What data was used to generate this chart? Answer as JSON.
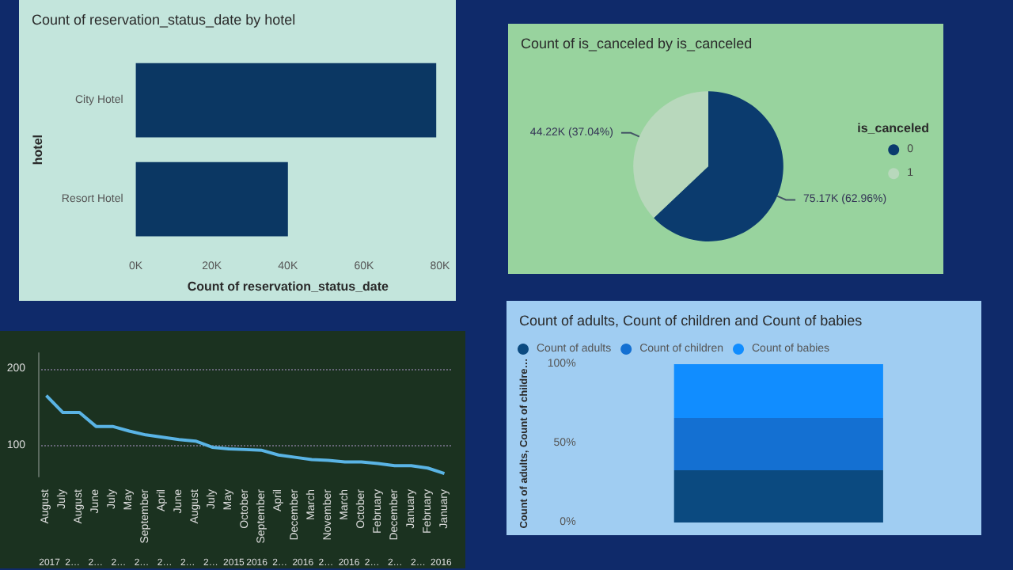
{
  "chart_data": [
    {
      "type": "bar",
      "orientation": "horizontal",
      "title": "Count of reservation_status_date by hotel",
      "xlabel": "Count of reservation_status_date",
      "ylabel": "hotel",
      "categories": [
        "City Hotel",
        "Resort Hotel"
      ],
      "values": [
        79000,
        40000
      ],
      "color": "#0b3763",
      "xlim": [
        0,
        80000
      ],
      "xticks": [
        {
          "value": 0,
          "label": "0K"
        },
        {
          "value": 20000,
          "label": "20K"
        },
        {
          "value": 40000,
          "label": "40K"
        },
        {
          "value": 60000,
          "label": "60K"
        },
        {
          "value": 80000,
          "label": "80K"
        }
      ]
    },
    {
      "type": "pie",
      "title": "Count of is_canceled by is_canceled",
      "legend_title": "is_canceled",
      "legend": "right",
      "categories": [
        "0",
        "1"
      ],
      "values": [
        75170,
        44220
      ],
      "colors": [
        "#0b3b6e",
        "#b8d8bc"
      ],
      "value_labels": [
        "75.17K (62.96%)",
        "44.22K (37.04%)"
      ]
    },
    {
      "type": "line",
      "marker": "none",
      "grid": "y",
      "color": "#5ab4e5",
      "categories": [
        "August",
        "July",
        "August",
        "June",
        "July",
        "May",
        "September",
        "April",
        "June",
        "August",
        "July",
        "May",
        "October",
        "September",
        "April",
        "December",
        "March",
        "November",
        "March",
        "October",
        "February",
        "December",
        "January",
        "February",
        "January"
      ],
      "values": [
        165,
        143,
        143,
        125,
        125,
        119,
        114,
        111,
        108,
        106,
        98,
        96,
        95,
        94,
        88,
        85,
        82,
        81,
        79,
        79,
        77,
        74,
        74,
        71,
        64
      ],
      "ylim": [
        60,
        220
      ],
      "yticks": [
        100,
        200
      ],
      "annotations": [
        "2017",
        "2…",
        "2…",
        "2…",
        "2…",
        "2…",
        "2…",
        "2…",
        "2015",
        "2016",
        "2…",
        "2016",
        "2…",
        "2016",
        "2…",
        "2…",
        "2…",
        "2016"
      ]
    },
    {
      "type": "bar",
      "stacked": true,
      "legend": "top left",
      "title": "Count of adults, Count of children and Count of babies",
      "ylabel": "Count of adults, Count of childre…",
      "categories": [
        null
      ],
      "ylim": [
        0,
        100
      ],
      "yticks": [
        {
          "value": 0,
          "label": "0%"
        },
        {
          "value": 50,
          "label": "50%"
        },
        {
          "value": 100,
          "label": "100%"
        }
      ],
      "series": [
        {
          "name": "Count of adults",
          "color": "#0b4a80",
          "values": [
            33
          ]
        },
        {
          "name": "Count of children",
          "color": "#1470d2",
          "values": [
            33
          ]
        },
        {
          "name": "Count of babies",
          "color": "#118dff",
          "values": [
            34
          ]
        }
      ]
    }
  ]
}
